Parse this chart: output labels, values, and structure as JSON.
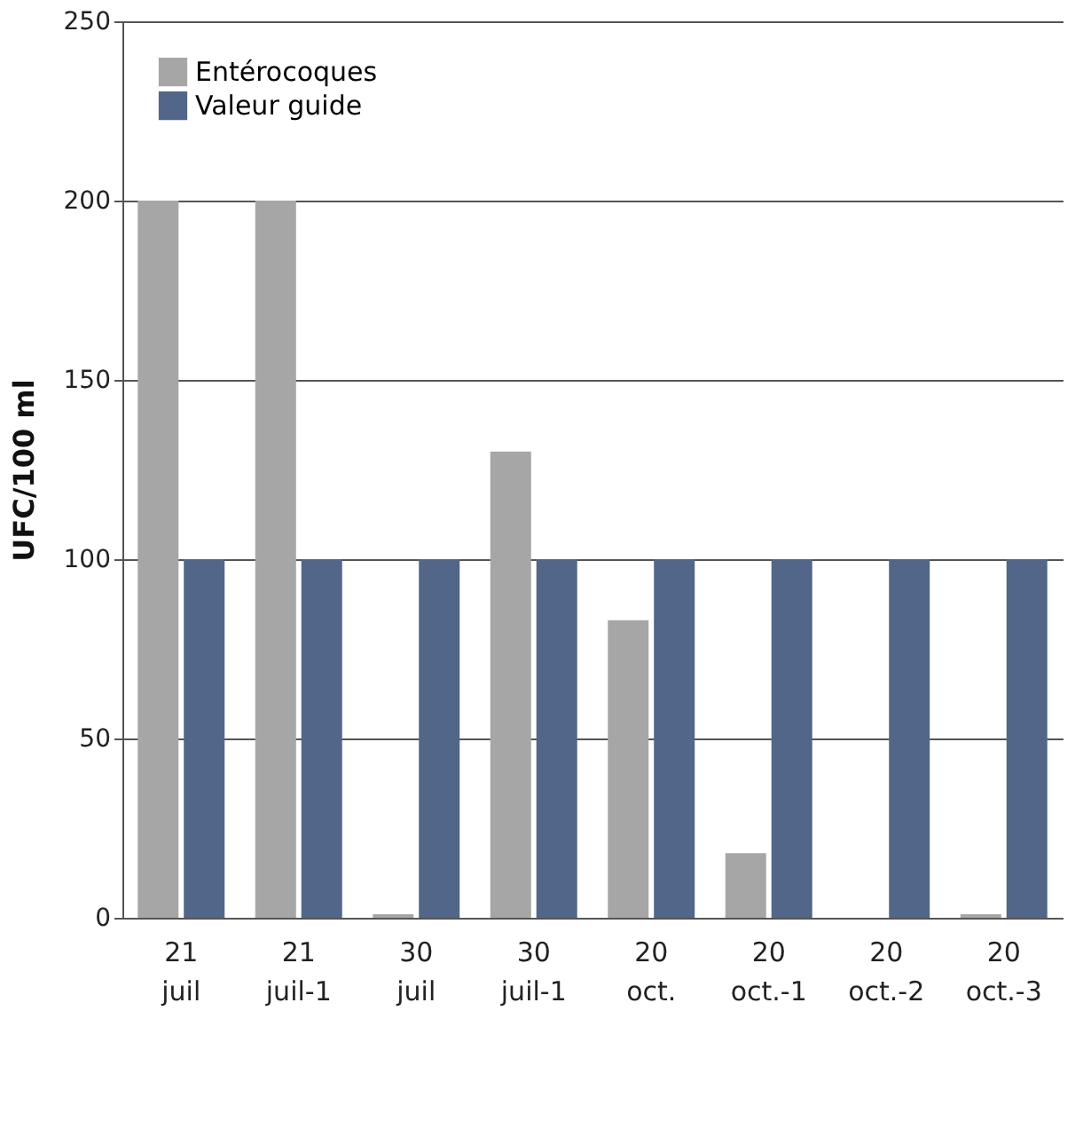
{
  "chart_data": {
    "type": "bar",
    "ylabel": "UFC/100 ml",
    "categories": [
      "21 juil",
      "21 juil-1",
      "30 juil",
      "30 juil-1",
      "20 oct.",
      "20 oct.-1",
      "20 oct.-2",
      "20 oct.-3"
    ],
    "series": [
      {
        "name": "Entérocoques",
        "color": "#a6a6a6",
        "values": [
          200,
          200,
          1,
          130,
          83,
          18,
          0,
          1
        ]
      },
      {
        "name": "Valeur guide",
        "color": "#526689",
        "values": [
          100,
          100,
          100,
          100,
          100,
          100,
          100,
          100
        ]
      }
    ],
    "ylim": [
      0,
      250
    ],
    "yticks": [
      0,
      50,
      100,
      150,
      200,
      250
    ],
    "grid": "y",
    "legend": "top left"
  }
}
